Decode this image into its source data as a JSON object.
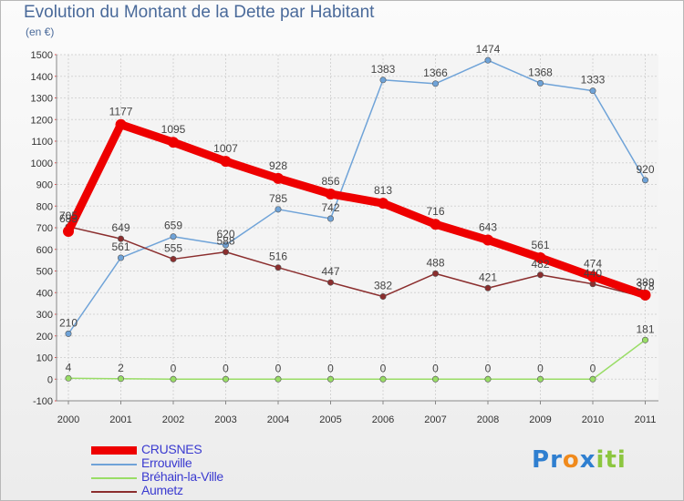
{
  "chart_data": {
    "type": "line",
    "title": "Evolution du Montant de la Dette par Habitant",
    "subtitle": "(en €)",
    "x": [
      "2000",
      "2001",
      "2002",
      "2003",
      "2004",
      "2005",
      "2006",
      "2007",
      "2008",
      "2009",
      "2010",
      "2011"
    ],
    "ylim": [
      -100,
      1500
    ],
    "yticks": [
      "-100",
      "0",
      "100",
      "200",
      "300",
      "400",
      "500",
      "600",
      "700",
      "800",
      "900",
      "1000",
      "1100",
      "1200",
      "1300",
      "1400",
      "1500"
    ],
    "grid": true,
    "legend_position": "bottom-left",
    "series": [
      {
        "name": "CRUSNES",
        "color": "#ee0000",
        "values": [
          683,
          1177,
          1095,
          1007,
          928,
          856,
          813,
          716,
          643,
          561,
          474,
          389
        ],
        "labels": [
          "683",
          "1177",
          "1095",
          "1007",
          "928",
          "856",
          "813",
          "716",
          "643",
          "561",
          "474",
          "389"
        ]
      },
      {
        "name": "Errouville",
        "color": "#6fa3d8",
        "values": [
          210,
          561,
          659,
          620,
          785,
          742,
          1383,
          1366,
          1474,
          1368,
          1333,
          920
        ],
        "labels": [
          "210",
          "561",
          "659",
          "620",
          "785",
          "742",
          "1383",
          "1366",
          "1474",
          "1368",
          "1333",
          "920"
        ]
      },
      {
        "name": "Bréhain-la-Ville",
        "color": "#99dd66",
        "values": [
          4,
          2,
          0,
          0,
          0,
          0,
          0,
          0,
          0,
          0,
          0,
          181
        ],
        "labels": [
          "4",
          "2",
          "0",
          "0",
          "0",
          "0",
          "0",
          "0",
          "0",
          "0",
          "0",
          "181"
        ]
      },
      {
        "name": "Aumetz",
        "color": "#8b2e2e",
        "values": [
          705,
          649,
          555,
          588,
          516,
          447,
          382,
          488,
          421,
          482,
          440,
          378
        ],
        "labels": [
          "705",
          "649",
          "555",
          "588",
          "516",
          "447",
          "382",
          "488",
          "421",
          "482",
          "440",
          "378"
        ]
      }
    ]
  },
  "logo": {
    "text": "Proxiti",
    "letters": [
      "P",
      "r",
      "o",
      "x",
      "i",
      "t",
      "i"
    ],
    "colors": [
      "#2f7fd0",
      "#2f7fd0",
      "#f08a1c",
      "#2f7fd0",
      "#8cc63f",
      "#8cc63f",
      "#8cc63f"
    ]
  }
}
